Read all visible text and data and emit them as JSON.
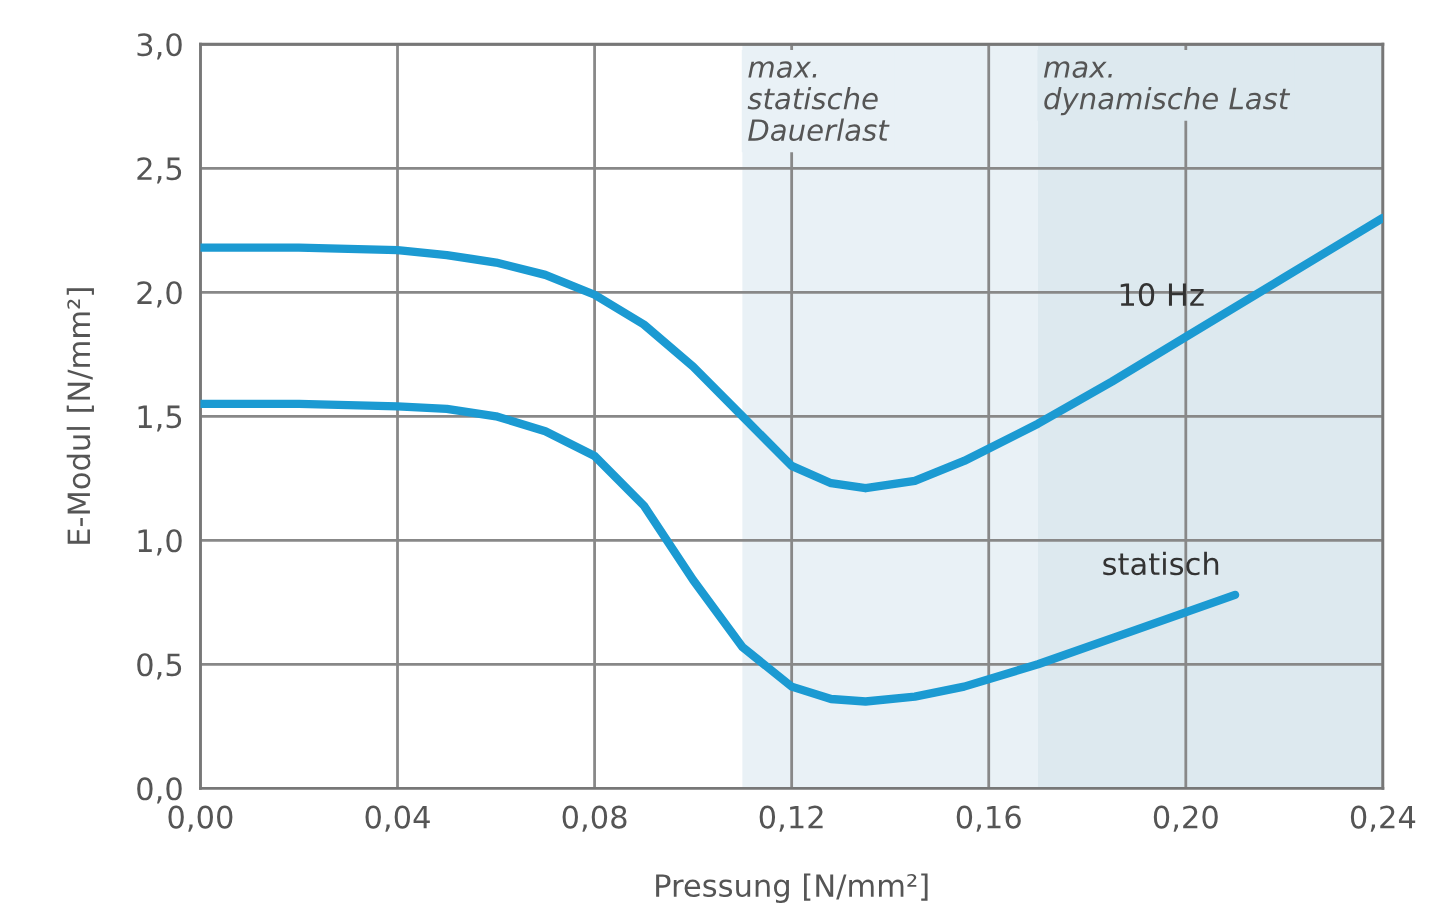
{
  "chart_data": {
    "type": "line",
    "xlabel": "Pressung [N/mm²]",
    "ylabel": "E-Modul [N/mm²]",
    "xlim": [
      0,
      0.24
    ],
    "ylim": [
      0,
      3.0
    ],
    "xticks": [
      {
        "value": 0,
        "label": "0,00"
      },
      {
        "value": 0.04,
        "label": "0,04"
      },
      {
        "value": 0.08,
        "label": "0,08"
      },
      {
        "value": 0.12,
        "label": "0,12"
      },
      {
        "value": 0.16,
        "label": "0,16"
      },
      {
        "value": 0.2,
        "label": "0,20"
      },
      {
        "value": 0.24,
        "label": "0,24"
      }
    ],
    "yticks": [
      {
        "value": 0,
        "label": "0,0"
      },
      {
        "value": 0.5,
        "label": "0,5"
      },
      {
        "value": 1.0,
        "label": "1,0"
      },
      {
        "value": 1.5,
        "label": "1,5"
      },
      {
        "value": 2.0,
        "label": "2,0"
      },
      {
        "value": 2.5,
        "label": "2,5"
      },
      {
        "value": 3.0,
        "label": "3,0"
      }
    ],
    "grid": true,
    "legend": false,
    "bands": [
      {
        "axis": "x",
        "from": 0.11,
        "to": 0.24,
        "label": "max.\nstatische\nDauerlast",
        "color": "#e9f1f6"
      },
      {
        "axis": "x",
        "from": 0.17,
        "to": 0.24,
        "label": "max.\ndynamische Last",
        "color": "#dde9ef"
      }
    ],
    "series": [
      {
        "name": "10 Hz",
        "color": "#1b9ad2",
        "x": [
          0,
          0.02,
          0.04,
          0.05,
          0.06,
          0.07,
          0.08,
          0.09,
          0.1,
          0.11,
          0.12,
          0.128,
          0.135,
          0.145,
          0.155,
          0.17,
          0.185,
          0.2,
          0.22,
          0.24
        ],
        "values": [
          2.18,
          2.18,
          2.17,
          2.15,
          2.12,
          2.07,
          1.99,
          1.87,
          1.7,
          1.5,
          1.3,
          1.23,
          1.21,
          1.24,
          1.32,
          1.47,
          1.64,
          1.82,
          2.06,
          2.3
        ]
      },
      {
        "name": "statisch",
        "color": "#1b9ad2",
        "x": [
          0,
          0.02,
          0.04,
          0.05,
          0.06,
          0.07,
          0.08,
          0.09,
          0.1,
          0.11,
          0.12,
          0.128,
          0.135,
          0.145,
          0.155,
          0.17,
          0.19,
          0.21
        ],
        "values": [
          1.55,
          1.55,
          1.54,
          1.53,
          1.5,
          1.44,
          1.34,
          1.14,
          0.84,
          0.57,
          0.41,
          0.36,
          0.35,
          0.37,
          0.41,
          0.5,
          0.64,
          0.78
        ]
      }
    ]
  }
}
